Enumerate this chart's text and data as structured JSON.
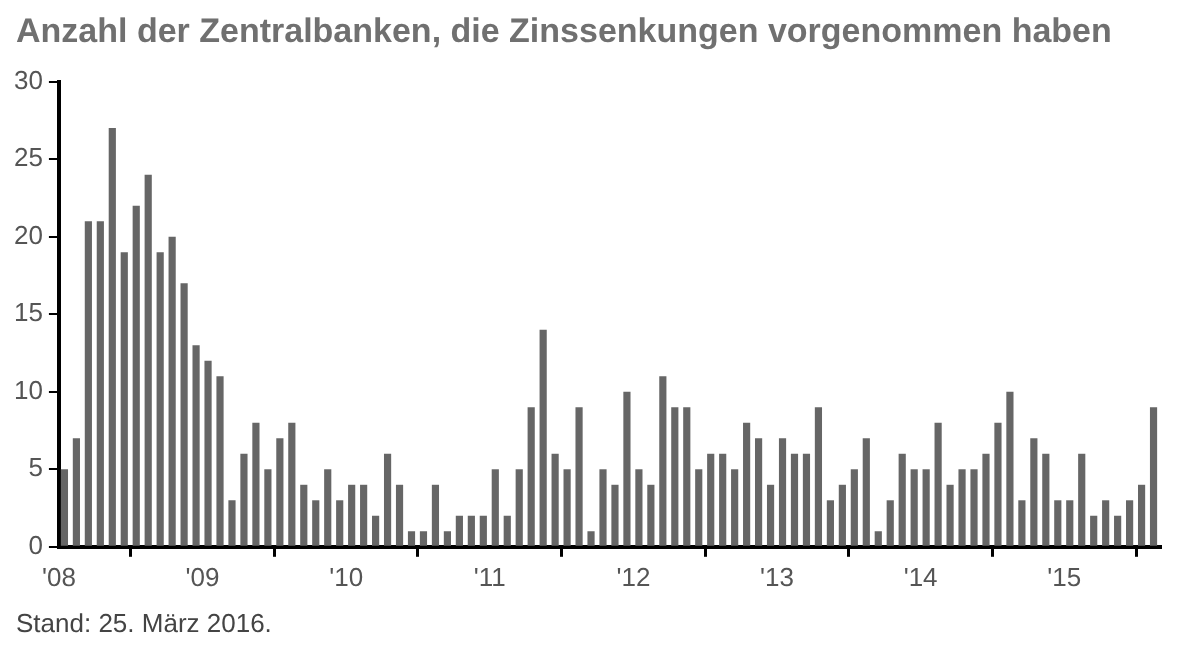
{
  "chart_data": {
    "type": "bar",
    "title": "Anzahl der Zentralbanken, die Zinssenkungen vorgenommen haben",
    "x": [
      "2008-01-15",
      "2008-02-15",
      "2008-03-15",
      "2008-04-15",
      "2008-05-15",
      "2008-06-15",
      "2008-07-15",
      "2008-08-15",
      "2008-09-15",
      "2008-10-15",
      "2008-11-15",
      "2008-12-15",
      "2009-01-15",
      "2009-02-15",
      "2009-03-15",
      "2009-04-15",
      "2009-05-15",
      "2009-06-15",
      "2009-07-15",
      "2009-08-15",
      "2009-09-15",
      "2009-10-15",
      "2009-11-15",
      "2009-12-15",
      "2010-01-15",
      "2010-02-15",
      "2010-03-15",
      "2010-04-15",
      "2010-05-15",
      "2010-06-15",
      "2010-07-15",
      "2010-08-15",
      "2010-09-15",
      "2010-10-15",
      "2010-11-15",
      "2010-12-15",
      "2011-01-15",
      "2011-02-15",
      "2011-03-15",
      "2011-04-15",
      "2011-05-15",
      "2011-06-15",
      "2011-07-15",
      "2011-08-15",
      "2011-09-15",
      "2011-10-15",
      "2011-11-15",
      "2011-12-15",
      "2012-01-15",
      "2012-02-15",
      "2012-03-15",
      "2012-04-15",
      "2012-05-15",
      "2012-06-15",
      "2012-07-15",
      "2012-08-15",
      "2012-09-15",
      "2012-10-15",
      "2012-11-15",
      "2012-12-15",
      "2013-01-15",
      "2013-02-15",
      "2013-03-15",
      "2013-04-15",
      "2013-05-15",
      "2013-06-15",
      "2013-07-15",
      "2013-08-15",
      "2013-09-15",
      "2013-10-15",
      "2013-11-15",
      "2013-12-15",
      "2014-01-15",
      "2014-02-15",
      "2014-03-15",
      "2014-04-15",
      "2014-05-15",
      "2014-06-15",
      "2014-07-15",
      "2014-08-15",
      "2014-09-15",
      "2014-10-15",
      "2014-11-15",
      "2014-12-15",
      "2015-01-15",
      "2015-02-15",
      "2015-03-15",
      "2015-04-15",
      "2015-05-15",
      "2015-06-15",
      "2015-07-15",
      "2015-08-15"
    ],
    "values": [
      5,
      7,
      21,
      21,
      27,
      19,
      22,
      24,
      19,
      20,
      17,
      13,
      12,
      11,
      3,
      6,
      8,
      5,
      7,
      8,
      4,
      3,
      5,
      3,
      4,
      4,
      2,
      6,
      4,
      1,
      1,
      4,
      1,
      2,
      2,
      2,
      5,
      2,
      5,
      9,
      14,
      6,
      5,
      9,
      1,
      5,
      4,
      10,
      5,
      4,
      11,
      9,
      9,
      5,
      6,
      6,
      5,
      8,
      7,
      4,
      7,
      6,
      6,
      9,
      3,
      4,
      5,
      7,
      1,
      3,
      6,
      5,
      5,
      8,
      4,
      5,
      5,
      6,
      8,
      10,
      3,
      7,
      6,
      3,
      3,
      6,
      2,
      3,
      2,
      3,
      4,
      9
    ],
    "color": "#666666",
    "xlim": [
      "2008-01",
      "2015-09"
    ],
    "xticks": [
      {
        "value": "2008-01",
        "label": "'08"
      },
      {
        "value": "2009-01",
        "label": "'09"
      },
      {
        "value": "2010-01",
        "label": "'10"
      },
      {
        "value": "2011-01",
        "label": "'11"
      },
      {
        "value": "2012-01",
        "label": "'12"
      },
      {
        "value": "2013-01",
        "label": "'13"
      },
      {
        "value": "2014-01",
        "label": "'14"
      },
      {
        "value": "2015-01",
        "label": "'15"
      }
    ],
    "ylim": [
      0,
      30
    ],
    "yticks": [
      0,
      5,
      10,
      15,
      20,
      25,
      30
    ],
    "grid": false,
    "legend": false,
    "annotations": [
      "Stand: 25. März 2016."
    ]
  }
}
